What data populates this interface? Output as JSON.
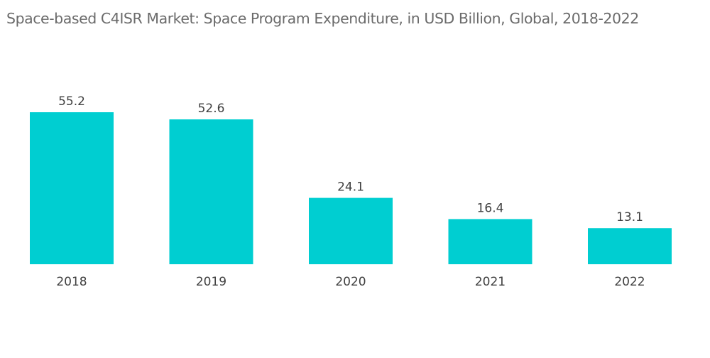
{
  "chart_data": {
    "type": "bar",
    "title": "Space-based C4ISR Market: Space Program Expenditure, in USD Billion, Global, 2018-2022",
    "xlabel": "",
    "ylabel": "",
    "categories": [
      "2018",
      "2019",
      "2020",
      "2021",
      "2022"
    ],
    "values": [
      55.2,
      52.6,
      24.1,
      16.4,
      13.1
    ],
    "value_labels": [
      "55.2",
      "52.6",
      "24.1",
      "16.4",
      "13.1"
    ],
    "ylim": [
      0,
      55.2
    ],
    "grid": false,
    "legend": "none",
    "bar_color": "#00ced1"
  }
}
